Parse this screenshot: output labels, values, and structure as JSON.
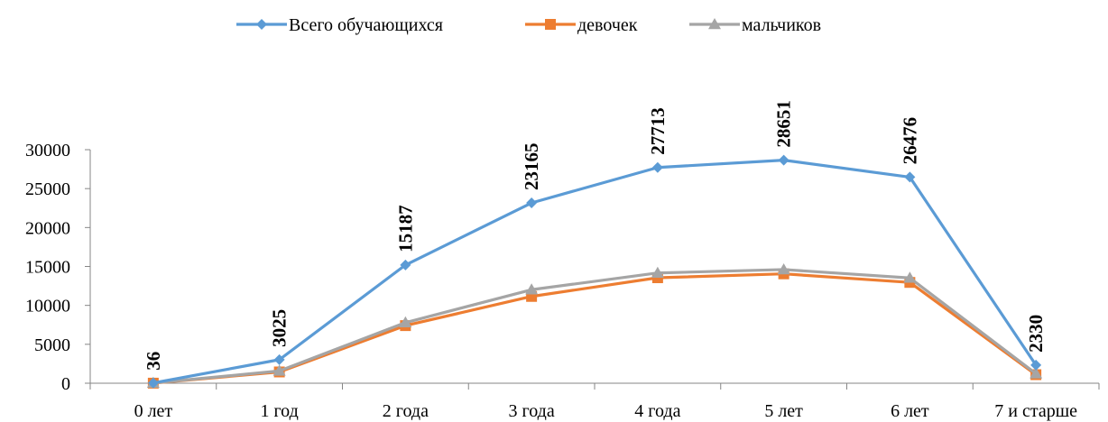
{
  "chart_data": {
    "type": "line",
    "title": "",
    "xlabel": "",
    "ylabel": "",
    "ylim": [
      0,
      30000
    ],
    "y_ticks": [
      "0",
      "5000",
      "10000",
      "15000",
      "20000",
      "25000",
      "30000"
    ],
    "grid": false,
    "legend_position": "top",
    "categories": [
      "0 лет",
      "1 год",
      "2 года",
      "3 года",
      "4 года",
      "5 лет",
      "6 лет",
      "7 и старше"
    ],
    "series": [
      {
        "name": "Всего обучающихся",
        "color": "#5B9BD5",
        "marker": "diamond",
        "values": [
          36,
          3025,
          15187,
          23165,
          27713,
          28651,
          26476,
          2330
        ]
      },
      {
        "name": "девочек",
        "color": "#ED7D31",
        "marker": "square",
        "values": [
          10,
          1450,
          7400,
          11150,
          13550,
          14050,
          12950,
          1100
        ]
      },
      {
        "name": "мальчиков",
        "color": "#A5A5A5",
        "marker": "triangle",
        "values": [
          26,
          1575,
          7787,
          12015,
          14163,
          14601,
          13526,
          1230
        ]
      }
    ],
    "data_labels": {
      "series": 0,
      "texts": [
        "36",
        "3025",
        "15187",
        "23165",
        "27713",
        "28651",
        "26476",
        "2330"
      ]
    }
  }
}
